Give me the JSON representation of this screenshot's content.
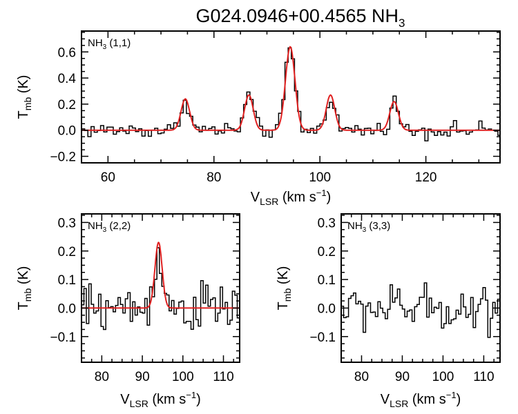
{
  "title": {
    "main": "G024.0946+00.4565 NH",
    "sub": "3"
  },
  "axis_labels": {
    "x_main": "V",
    "x_sub": "LSR",
    "x_unit": " (km s",
    "x_exp": "−1",
    "x_close": ")",
    "y_main": "T",
    "y_sub": "mb",
    "y_unit": " (K)"
  },
  "colors": {
    "spectrum": "#000000",
    "fit": "#e02020"
  },
  "chart_data": [
    {
      "type": "line",
      "panel": "NH3 (1,1)",
      "label_main": "NH",
      "label_sub": "3",
      "label_rest": " (1,1)",
      "xlim": [
        55,
        134
      ],
      "ylim": [
        -0.25,
        0.76
      ],
      "xticks": [
        60,
        80,
        100,
        120
      ],
      "xtick_labels": [
        "60",
        "80",
        "100",
        "120"
      ],
      "yticks": [
        -0.2,
        0.0,
        0.2,
        0.4,
        0.6
      ],
      "ytick_labels": [
        "−0.2",
        "0.0",
        "0.2",
        "0.4",
        "0.6"
      ],
      "xlabel": "VLSR (km s−1)",
      "ylabel": "Tmb (K)",
      "spectrum_step_kms": 0.6,
      "spectrum_noise_rms_K": 0.03,
      "fit_components": [
        {
          "center_kms": 74.6,
          "peak_K": 0.24,
          "fwhm_kms": 1.9
        },
        {
          "center_kms": 86.6,
          "peak_K": 0.27,
          "fwhm_kms": 1.9
        },
        {
          "center_kms": 94.4,
          "peak_K": 0.64,
          "fwhm_kms": 2.1
        },
        {
          "center_kms": 102.0,
          "peak_K": 0.27,
          "fwhm_kms": 1.9
        },
        {
          "center_kms": 114.0,
          "peak_K": 0.22,
          "fwhm_kms": 1.9
        }
      ]
    },
    {
      "type": "line",
      "panel": "NH3 (2,2)",
      "label_main": "NH",
      "label_sub": "3",
      "label_rest": " (2,2)",
      "xlim": [
        75,
        114
      ],
      "ylim": [
        -0.19,
        0.33
      ],
      "xticks": [
        80,
        90,
        100,
        110
      ],
      "xtick_labels": [
        "80",
        "90",
        "100",
        "110"
      ],
      "yticks": [
        -0.1,
        0.0,
        0.1,
        0.2,
        0.3
      ],
      "ytick_labels": [
        "−0.1",
        "0.0",
        "0.1",
        "0.2",
        "0.3"
      ],
      "xlabel": "VLSR (km s−1)",
      "ylabel": "Tmb (K)",
      "spectrum_step_kms": 0.6,
      "spectrum_noise_rms_K": 0.045,
      "fit_components": [
        {
          "center_kms": 94.0,
          "peak_K": 0.23,
          "fwhm_kms": 2.1
        }
      ]
    },
    {
      "type": "line",
      "panel": "NH3 (3,3)",
      "label_main": "NH",
      "label_sub": "3",
      "label_rest": " (3,3)",
      "xlim": [
        75,
        114
      ],
      "ylim": [
        -0.19,
        0.33
      ],
      "xticks": [
        80,
        90,
        100,
        110
      ],
      "xtick_labels": [
        "80",
        "90",
        "100",
        "110"
      ],
      "yticks": [
        -0.1,
        0.0,
        0.1,
        0.2,
        0.3
      ],
      "ytick_labels": [
        "−0.1",
        "0.0",
        "0.1",
        "0.2",
        "0.3"
      ],
      "xlabel": "VLSR (km s−1)",
      "ylabel": "Tmb (K)",
      "spectrum_step_kms": 0.6,
      "spectrum_noise_rms_K": 0.04,
      "fit_components": []
    }
  ]
}
